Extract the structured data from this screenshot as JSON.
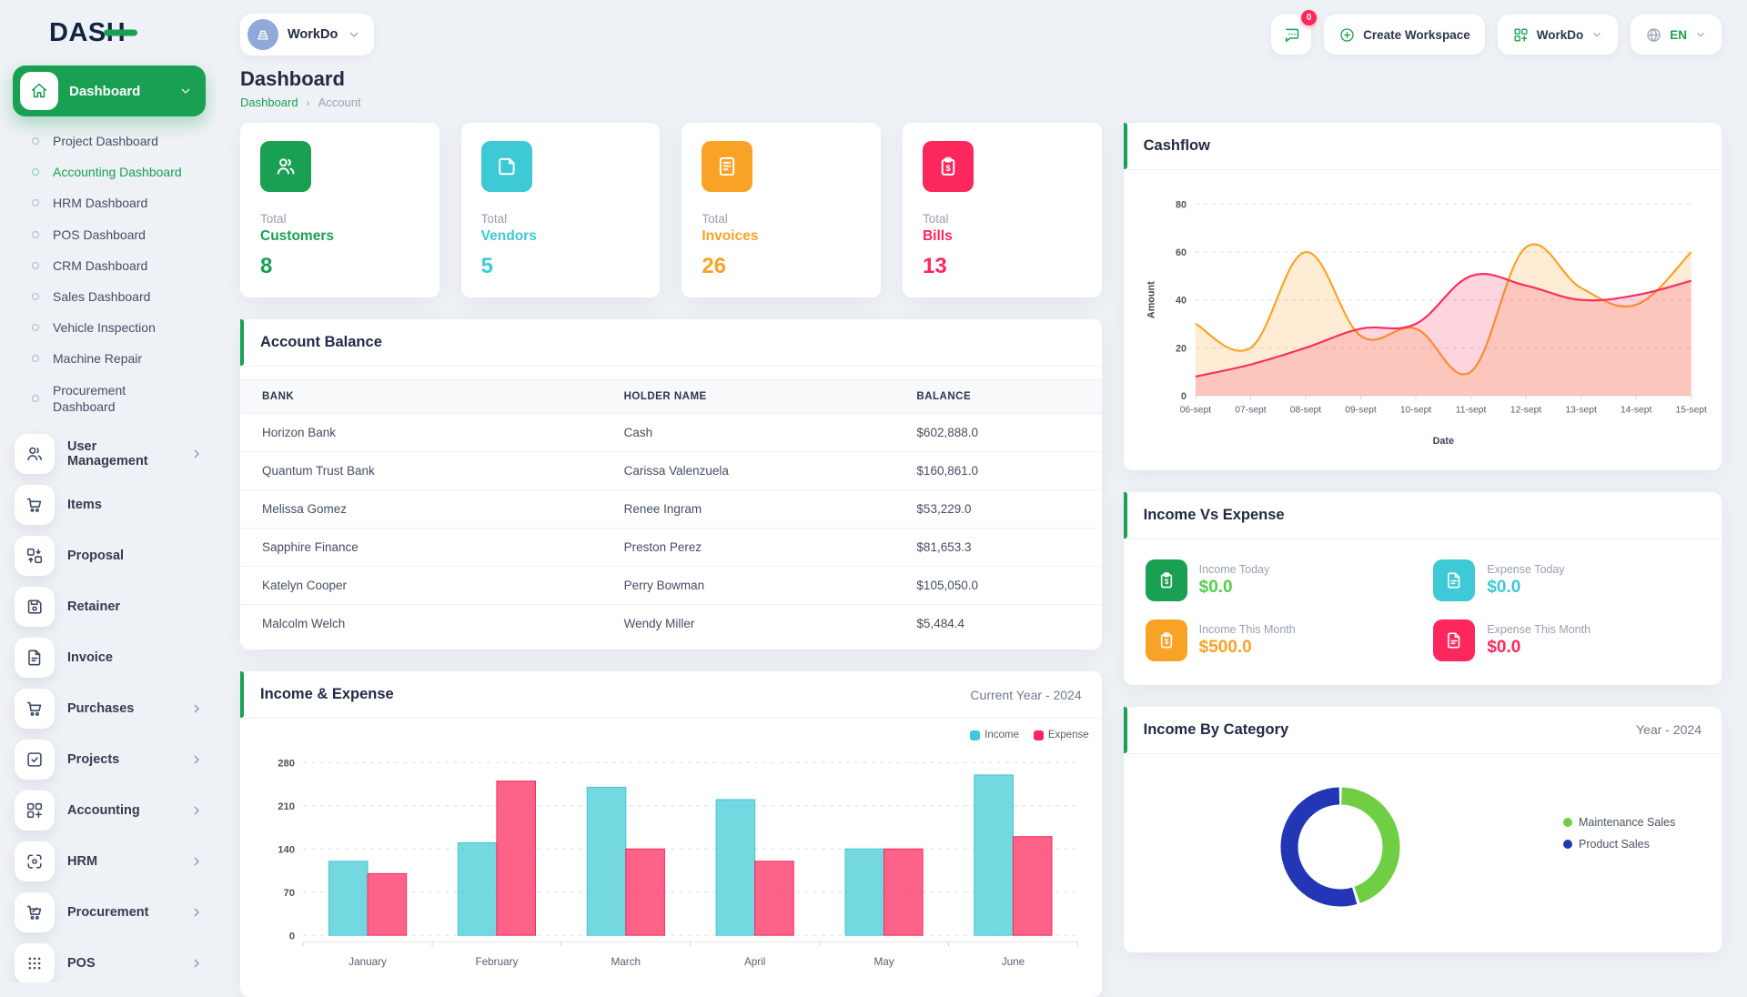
{
  "brand": {
    "logo_text_dark": "DAS",
    "logo_text_accent": "H"
  },
  "colors": {
    "primary": "#1aa053",
    "cyan": "#3ec9d6",
    "orange": "#f9a326",
    "pink": "#fc2c5f",
    "donut_green": "#6fce44",
    "donut_blue": "#2336b5",
    "badge_red": "#fc275c"
  },
  "topbar": {
    "workspace_chip": {
      "label": "WorkDo",
      "avatar_icon": "building"
    },
    "messages_badge": "0",
    "create_workspace_label": "Create Workspace",
    "workdo_menu_label": "WorkDo",
    "language_label": "EN"
  },
  "sidebar": {
    "active_item": {
      "label": "Dashboard",
      "icon": "home"
    },
    "dashboard_subitems": [
      {
        "label": "Project Dashboard",
        "active": false
      },
      {
        "label": "Accounting Dashboard",
        "active": true
      },
      {
        "label": "HRM Dashboard",
        "active": false
      },
      {
        "label": "POS Dashboard",
        "active": false
      },
      {
        "label": "CRM Dashboard",
        "active": false
      },
      {
        "label": "Sales Dashboard",
        "active": false
      },
      {
        "label": "Vehicle Inspection",
        "active": false
      },
      {
        "label": "Machine Repair",
        "active": false
      },
      {
        "label": "Procurement Dashboard",
        "active": false
      }
    ],
    "menu_items": [
      {
        "label": "User Management",
        "icon": "users",
        "has_submenu": true
      },
      {
        "label": "Items",
        "icon": "cart",
        "has_submenu": false
      },
      {
        "label": "Proposal",
        "icon": "swap",
        "has_submenu": false
      },
      {
        "label": "Retainer",
        "icon": "save",
        "has_submenu": false
      },
      {
        "label": "Invoice",
        "icon": "filedoc",
        "has_submenu": false
      },
      {
        "label": "Purchases",
        "icon": "cart",
        "has_submenu": true
      },
      {
        "label": "Projects",
        "icon": "checksq",
        "has_submenu": true
      },
      {
        "label": "Accounting",
        "icon": "gridplus",
        "has_submenu": true
      },
      {
        "label": "HRM",
        "icon": "hub",
        "has_submenu": true
      },
      {
        "label": "Procurement",
        "icon": "cartpct",
        "has_submenu": true
      },
      {
        "label": "POS",
        "icon": "dots",
        "has_submenu": true
      }
    ]
  },
  "page": {
    "title": "Dashboard",
    "breadcrumb_parent": "Dashboard",
    "breadcrumb_separator": "›",
    "breadcrumb_current": "Account"
  },
  "stat_cards": [
    {
      "label_top": "Total",
      "label": "Customers",
      "value": "8",
      "color": "#1aa053",
      "icon": "users"
    },
    {
      "label_top": "Total",
      "label": "Vendors",
      "value": "5",
      "color": "#3ec9d6",
      "icon": "note"
    },
    {
      "label_top": "Total",
      "label": "Invoices",
      "value": "26",
      "color": "#f9a326",
      "icon": "invoice"
    },
    {
      "label_top": "Total",
      "label": "Bills",
      "value": "13",
      "color": "#fc275c",
      "icon": "clip"
    }
  ],
  "account_balance": {
    "title": "Account Balance",
    "columns": [
      "BANK",
      "HOLDER NAME",
      "BALANCE"
    ],
    "rows": [
      [
        "Horizon Bank",
        "Cash",
        "$602,888.0"
      ],
      [
        "Quantum Trust Bank",
        "Carissa Valenzuela",
        "$160,861.0"
      ],
      [
        "Melissa Gomez",
        "Renee Ingram",
        "$53,229.0"
      ],
      [
        "Sapphire Finance",
        "Preston Perez",
        "$81,653.3"
      ],
      [
        "Katelyn Cooper",
        "Perry Bowman",
        "$105,050.0"
      ],
      [
        "Malcolm Welch",
        "Wendy Miller",
        "$5,484.4"
      ]
    ]
  },
  "income_vs_expense": {
    "title": "Income Vs Expense",
    "tiles": [
      {
        "label": "Income Today",
        "value": "$0.0",
        "color": "#1aa053",
        "value_color": "#52cf4b",
        "icon": "clip"
      },
      {
        "label": "Expense Today",
        "value": "$0.0",
        "color": "#3ec9d6",
        "value_color": "#3ec9d6",
        "icon": "filedoc"
      },
      {
        "label": "Income This Month",
        "value": "$500.0",
        "color": "#f9a326",
        "value_color": "#f9a326",
        "icon": "clip"
      },
      {
        "label": "Expense This Month",
        "value": "$0.0",
        "color": "#fc275c",
        "value_color": "#fc275c",
        "icon": "filedoc"
      }
    ]
  },
  "chart_data": [
    {
      "id": "cashflow",
      "type": "area",
      "title": "Cashflow",
      "xlabel": "Date",
      "ylabel": "Amount",
      "x": [
        "06-sept",
        "07-sept",
        "08-sept",
        "09-sept",
        "10-sept",
        "11-sept",
        "12-sept",
        "13-sept",
        "14-sept",
        "15-sept"
      ],
      "ylim": [
        0,
        80
      ],
      "yticks": [
        0,
        20,
        40,
        60,
        80
      ],
      "grid": "dashed-horizontal",
      "series": [
        {
          "name": "orange-series",
          "color": "#f9a326",
          "values": [
            30,
            20,
            60,
            25,
            28,
            10,
            62,
            45,
            38,
            60
          ]
        },
        {
          "name": "pink-series",
          "color": "#fc2c5f",
          "values": [
            8,
            13,
            20,
            28,
            30,
            50,
            46,
            40,
            42,
            48
          ]
        }
      ]
    },
    {
      "id": "income_expense",
      "type": "bar",
      "title": "Income & Expense",
      "subtitle": "Current Year - 2024",
      "categories": [
        "January",
        "February",
        "March",
        "April",
        "May",
        "June"
      ],
      "ylim": [
        0,
        280
      ],
      "yticks": [
        0,
        70,
        140,
        210,
        280
      ],
      "grid": "dashed-horizontal",
      "legend_position": "top-right",
      "series": [
        {
          "name": "Income",
          "color": "#3ec9d6",
          "values": [
            120,
            150,
            240,
            220,
            140,
            260
          ]
        },
        {
          "name": "Expense",
          "color": "#fc275c",
          "values": [
            100,
            250,
            140,
            120,
            140,
            160
          ]
        }
      ]
    },
    {
      "id": "income_by_category",
      "type": "donut",
      "title": "Income By Category",
      "subtitle": "Year - 2024",
      "legend_position": "right",
      "slices": [
        {
          "label": "Maintenance Sales",
          "color": "#6fce44",
          "value": 45
        },
        {
          "label": "Product Sales",
          "color": "#2336b5",
          "value": 55
        }
      ]
    }
  ]
}
